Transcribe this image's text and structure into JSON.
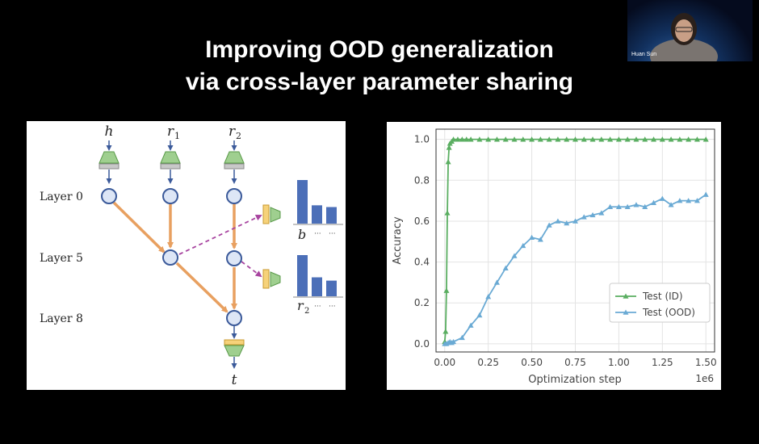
{
  "slide": {
    "title_line1": "Improving OOD generalization",
    "title_line2": "via cross-layer parameter sharing"
  },
  "webcam": {
    "name": "Huan Sun"
  },
  "diagram": {
    "inputs": [
      "h",
      "r1",
      "r2"
    ],
    "layers": [
      "Layer 0",
      "Layer 5",
      "Layer 8"
    ],
    "out_top_label": "b",
    "out_bottom_label": "r2",
    "ellipsis": "···",
    "output": "t",
    "bars_top": [
      1.0,
      0.42,
      0.38
    ],
    "bars_bottom": [
      1.0,
      0.46,
      0.38
    ]
  },
  "chart_data": {
    "type": "line",
    "xlabel": "Optimization step",
    "ylabel": "Accuracy",
    "x_multiplier": "1e6",
    "xlim": [
      -0.05,
      1.55
    ],
    "ylim": [
      -0.04,
      1.05
    ],
    "xticks": [
      0.0,
      0.25,
      0.5,
      0.75,
      1.0,
      1.25,
      1.5
    ],
    "xtick_labels": [
      "0.00",
      "0.25",
      "0.50",
      "0.75",
      "1.00",
      "1.25",
      "1.50"
    ],
    "yticks": [
      0.0,
      0.2,
      0.4,
      0.6,
      0.8,
      1.0
    ],
    "ytick_labels": [
      "0.0",
      "0.2",
      "0.4",
      "0.6",
      "0.8",
      "1.0"
    ],
    "grid": true,
    "legend": "lower-right",
    "series": [
      {
        "name": "Test (ID)",
        "color": "#5aae61",
        "x": [
          0.0,
          0.005,
          0.01,
          0.015,
          0.02,
          0.025,
          0.03,
          0.04,
          0.05,
          0.075,
          0.1,
          0.125,
          0.15,
          0.2,
          0.25,
          0.3,
          0.35,
          0.4,
          0.45,
          0.5,
          0.55,
          0.6,
          0.65,
          0.7,
          0.75,
          0.8,
          0.85,
          0.9,
          0.95,
          1.0,
          1.05,
          1.1,
          1.15,
          1.2,
          1.25,
          1.3,
          1.35,
          1.4,
          1.45,
          1.5
        ],
        "y": [
          0.01,
          0.06,
          0.26,
          0.64,
          0.89,
          0.96,
          0.98,
          0.99,
          1.0,
          1.0,
          1.0,
          1.0,
          1.0,
          1.0,
          1.0,
          1.0,
          1.0,
          1.0,
          1.0,
          1.0,
          1.0,
          1.0,
          1.0,
          1.0,
          1.0,
          1.0,
          1.0,
          1.0,
          1.0,
          1.0,
          1.0,
          1.0,
          1.0,
          1.0,
          1.0,
          1.0,
          1.0,
          1.0,
          1.0,
          1.0
        ]
      },
      {
        "name": "Test (OOD)",
        "color": "#6aaad4",
        "x": [
          0.0,
          0.01,
          0.02,
          0.03,
          0.04,
          0.05,
          0.1,
          0.15,
          0.2,
          0.25,
          0.3,
          0.35,
          0.4,
          0.45,
          0.5,
          0.55,
          0.6,
          0.65,
          0.7,
          0.75,
          0.8,
          0.85,
          0.9,
          0.95,
          1.0,
          1.05,
          1.1,
          1.15,
          1.2,
          1.25,
          1.3,
          1.35,
          1.4,
          1.45,
          1.5
        ],
        "y": [
          0.0,
          0.0,
          0.005,
          0.01,
          0.005,
          0.01,
          0.03,
          0.09,
          0.14,
          0.23,
          0.3,
          0.37,
          0.43,
          0.48,
          0.52,
          0.51,
          0.58,
          0.6,
          0.59,
          0.6,
          0.62,
          0.63,
          0.64,
          0.67,
          0.67,
          0.67,
          0.68,
          0.67,
          0.69,
          0.71,
          0.68,
          0.7,
          0.7,
          0.7,
          0.73
        ]
      }
    ]
  }
}
